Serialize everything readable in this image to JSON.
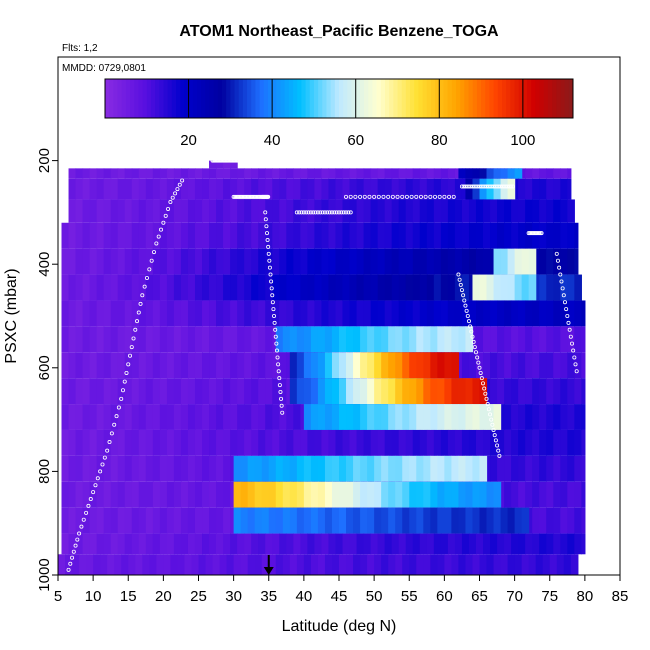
{
  "chart_data": {
    "type": "heatmap",
    "title": "ATOM1 Northeast_Pacific Benzene_TOGA",
    "subtitle_flights": "Flts: 1,2",
    "subtitle_dates": "MMDD: 0729,0801",
    "xlabel": "Latitude (deg N)",
    "ylabel": "PSXC (mbar)",
    "xlim": [
      5,
      85
    ],
    "ylim": [
      1000,
      0
    ],
    "x_ticks": [
      "5",
      "10",
      "15",
      "20",
      "25",
      "30",
      "35",
      "40",
      "45",
      "50",
      "55",
      "60",
      "65",
      "70",
      "75",
      "80",
      "85"
    ],
    "y_ticks": [
      "200",
      "400",
      "600",
      "800",
      "1000"
    ],
    "colorbar": {
      "range": [
        0,
        112
      ],
      "ticks": [
        "20",
        "40",
        "60",
        "80",
        "100"
      ],
      "palette": [
        "#8a2be2",
        "#5a10e0",
        "#0000cd",
        "#0000a0",
        "#1e6fff",
        "#00bfff",
        "#bfe9ff",
        "#ffffd0",
        "#ffe033",
        "#ffa500",
        "#ff4500",
        "#d00000",
        "#8b1a1a"
      ]
    },
    "marker_latitude": 35,
    "bands": [
      {
        "p0": 200,
        "p1": 215,
        "x0": 26.5,
        "x1": 30.5,
        "v0": 3,
        "v1": 4
      },
      {
        "p0": 215,
        "p1": 235,
        "x0": 6.5,
        "x1": 78,
        "v0": 4,
        "v1": 6
      },
      {
        "p0": 215,
        "p1": 235,
        "x0": 62,
        "x1": 71,
        "v0": 18,
        "v1": 40
      },
      {
        "p0": 235,
        "p1": 275,
        "x0": 6.5,
        "x1": 78,
        "v0": 4,
        "v1": 14
      },
      {
        "p0": 235,
        "p1": 275,
        "x0": 63,
        "x1": 70,
        "v0": 24,
        "v1": 60
      },
      {
        "p0": 275,
        "p1": 320,
        "x0": 6.5,
        "x1": 78.5,
        "v0": 4,
        "v1": 16
      },
      {
        "p0": 320,
        "p1": 370,
        "x0": 5.5,
        "x1": 79,
        "v0": 4,
        "v1": 18
      },
      {
        "p0": 370,
        "p1": 420,
        "x0": 5.5,
        "x1": 79,
        "v0": 4,
        "v1": 26
      },
      {
        "p0": 370,
        "p1": 420,
        "x0": 67,
        "x1": 73,
        "v0": 50,
        "v1": 62
      },
      {
        "p0": 420,
        "p1": 470,
        "x0": 5.5,
        "x1": 79.5,
        "v0": 4,
        "v1": 30
      },
      {
        "p0": 420,
        "p1": 470,
        "x0": 64,
        "x1": 73,
        "v0": 62,
        "v1": 50
      },
      {
        "p0": 470,
        "p1": 520,
        "x0": 5.5,
        "x1": 80,
        "v0": 4,
        "v1": 20
      },
      {
        "p0": 520,
        "p1": 570,
        "x0": 5.5,
        "x1": 80,
        "v0": 4,
        "v1": 8
      },
      {
        "p0": 520,
        "p1": 570,
        "x0": 36,
        "x1": 64,
        "v0": 38,
        "v1": 55
      },
      {
        "p0": 570,
        "p1": 620,
        "x0": 5.5,
        "x1": 80,
        "v0": 4,
        "v1": 10
      },
      {
        "p0": 570,
        "p1": 620,
        "x0": 38,
        "x1": 62,
        "v0": 30,
        "v1": 100
      },
      {
        "p0": 620,
        "p1": 670,
        "x0": 5.5,
        "x1": 80,
        "v0": 4,
        "v1": 12
      },
      {
        "p0": 620,
        "p1": 670,
        "x0": 38,
        "x1": 66,
        "v0": 30,
        "v1": 98
      },
      {
        "p0": 670,
        "p1": 720,
        "x0": 5.5,
        "x1": 80,
        "v0": 4,
        "v1": 14
      },
      {
        "p0": 670,
        "p1": 720,
        "x0": 40,
        "x1": 68,
        "v0": 40,
        "v1": 60
      },
      {
        "p0": 720,
        "p1": 770,
        "x0": 5.5,
        "x1": 80,
        "v0": 4,
        "v1": 14
      },
      {
        "p0": 770,
        "p1": 820,
        "x0": 5.5,
        "x1": 80,
        "v0": 4,
        "v1": 12
      },
      {
        "p0": 770,
        "p1": 820,
        "x0": 30,
        "x1": 66,
        "v0": 40,
        "v1": 55
      },
      {
        "p0": 820,
        "p1": 870,
        "x0": 5.5,
        "x1": 80,
        "v0": 4,
        "v1": 10
      },
      {
        "p0": 820,
        "p1": 870,
        "x0": 30,
        "x1": 68,
        "v0": 80,
        "v1": 40
      },
      {
        "p0": 870,
        "p1": 920,
        "x0": 5.5,
        "x1": 80,
        "v0": 4,
        "v1": 10
      },
      {
        "p0": 870,
        "p1": 920,
        "x0": 30,
        "x1": 72,
        "v0": 38,
        "v1": 30
      },
      {
        "p0": 920,
        "p1": 960,
        "x0": 5.5,
        "x1": 80,
        "v0": 4,
        "v1": 14
      },
      {
        "p0": 960,
        "p1": 1000,
        "x0": 5,
        "x1": 79,
        "v0": 5,
        "v1": 12
      }
    ],
    "flight_tracks": [
      {
        "lat": [
          6.5,
          8,
          10,
          12,
          14,
          15.5,
          17,
          19,
          21,
          23
        ],
        "p": [
          990,
          920,
          840,
          760,
          660,
          560,
          460,
          360,
          280,
          230
        ]
      },
      {
        "lat": [
          27,
          28,
          29,
          30,
          31,
          32,
          33,
          34,
          35
        ],
        "p": [
          200,
          200,
          200,
          200,
          200,
          200,
          200,
          200,
          200
        ]
      },
      {
        "lat": [
          30,
          31,
          32,
          33,
          34,
          34.5,
          35
        ],
        "p": [
          270,
          270,
          270,
          270,
          270,
          270,
          270
        ]
      },
      {
        "lat": [
          34.5,
          35,
          35.5,
          36,
          36.5,
          37
        ],
        "p": [
          300,
          380,
          460,
          540,
          620,
          700
        ]
      },
      {
        "lat": [
          39,
          41,
          43,
          45,
          47
        ],
        "p": [
          300,
          300,
          300,
          300,
          300
        ]
      },
      {
        "lat": [
          46,
          50,
          54,
          58,
          62
        ],
        "p": [
          270,
          270,
          270,
          270,
          270
        ]
      },
      {
        "lat": [
          62.5,
          64,
          65.5,
          67,
          68.5,
          70
        ],
        "p": [
          250,
          250,
          250,
          250,
          250,
          250
        ]
      },
      {
        "lat": [
          62,
          63,
          64,
          65,
          66,
          67,
          68
        ],
        "p": [
          420,
          480,
          540,
          600,
          660,
          720,
          780
        ]
      },
      {
        "lat": [
          72,
          73,
          74
        ],
        "p": [
          340,
          340,
          340
        ]
      },
      {
        "lat": [
          76,
          77,
          78,
          79
        ],
        "p": [
          380,
          460,
          540,
          620
        ]
      }
    ]
  }
}
